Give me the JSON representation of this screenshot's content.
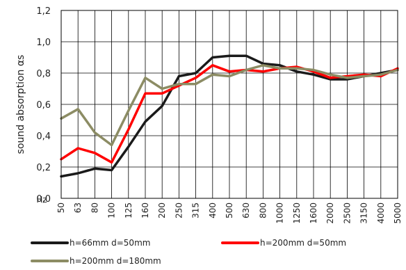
{
  "chart_data": {
    "type": "line",
    "ylabel": "sound absorption αs",
    "x_unit": "Hz",
    "categories": [
      "50",
      "63",
      "80",
      "100",
      "125",
      "160",
      "200",
      "250",
      "315",
      "400",
      "500",
      "630",
      "800",
      "1000",
      "1250",
      "1600",
      "2000",
      "2500",
      "3150",
      "4000",
      "5000"
    ],
    "ylim": [
      0,
      1.2
    ],
    "yticks": [
      "0,0",
      "0,2",
      "0,4",
      "0,6",
      "0,8",
      "1,0",
      "1,2"
    ],
    "grid": true,
    "legend_position": "bottom",
    "series": [
      {
        "name": "h=66mm d=50mm",
        "color": "#1a1a1a",
        "values": [
          0.14,
          0.16,
          0.19,
          0.18,
          0.33,
          0.49,
          0.59,
          0.78,
          0.8,
          0.9,
          0.91,
          0.91,
          0.86,
          0.85,
          0.81,
          0.79,
          0.76,
          0.76,
          0.78,
          0.8,
          0.82
        ]
      },
      {
        "name": "h=200mm d=50mm",
        "color": "#ff0000",
        "values": [
          0.25,
          0.32,
          0.29,
          0.23,
          0.44,
          0.67,
          0.67,
          0.72,
          0.77,
          0.85,
          0.81,
          0.82,
          0.81,
          0.83,
          0.84,
          0.81,
          0.77,
          0.78,
          0.79,
          0.78,
          0.83
        ]
      },
      {
        "name": "h=200mm d=180mm",
        "color": "#8c8c64",
        "values": [
          0.51,
          0.57,
          0.42,
          0.34,
          0.56,
          0.77,
          0.7,
          0.73,
          0.73,
          0.79,
          0.78,
          0.82,
          0.85,
          0.83,
          0.83,
          0.82,
          0.79,
          0.77,
          0.78,
          0.79,
          0.82
        ]
      }
    ]
  }
}
